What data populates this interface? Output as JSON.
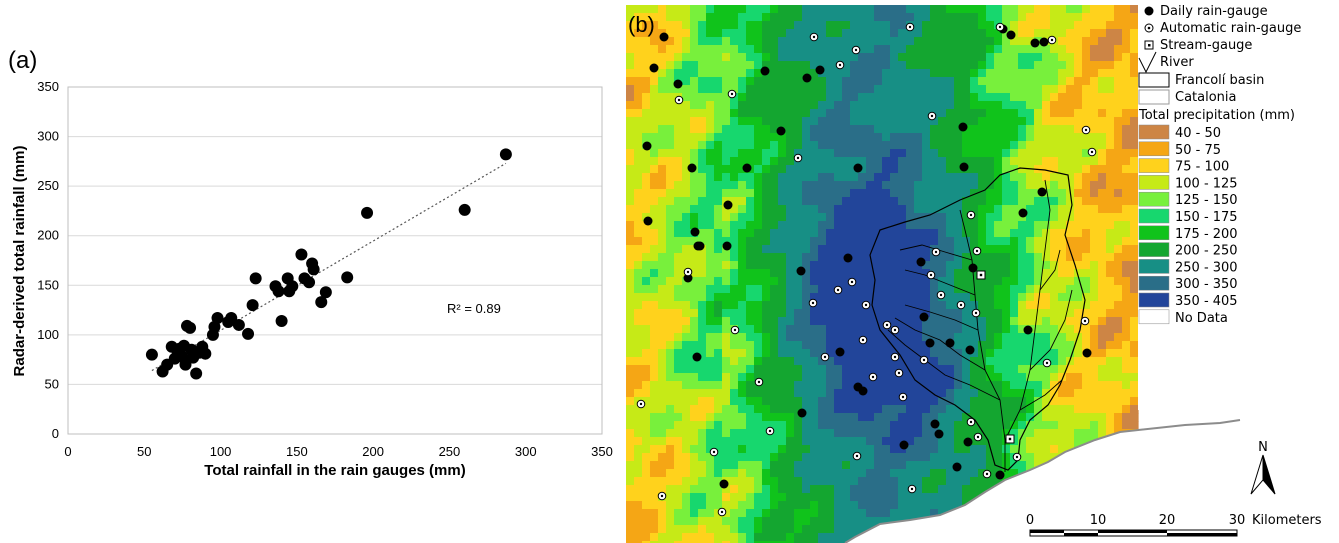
{
  "panel_a": {
    "label": "(a)",
    "r2_label": "R² = 0.89"
  },
  "panel_b": {
    "label": "(b)"
  },
  "chart_data": [
    {
      "type": "scatter",
      "title": "",
      "xlabel": "Total rainfall in the rain gauges (mm)",
      "ylabel": "Radar-derived total rainfall (mm)",
      "xlim": [
        0,
        350
      ],
      "ylim": [
        0,
        350
      ],
      "xticks": [
        "0",
        "50",
        "100",
        "150",
        "200",
        "250",
        "300",
        "350"
      ],
      "yticks": [
        "0",
        "50",
        "100",
        "150",
        "200",
        "250",
        "300",
        "350"
      ],
      "grid": "horizontal",
      "trendline": {
        "from": [
          55,
          64
        ],
        "to": [
          287,
          273
        ],
        "style": "dotted"
      },
      "annotation": "R² = 0.89",
      "points": [
        [
          55,
          80
        ],
        [
          62,
          63
        ],
        [
          65,
          70
        ],
        [
          68,
          88
        ],
        [
          70,
          76
        ],
        [
          72,
          82
        ],
        [
          73,
          86
        ],
        [
          75,
          78
        ],
        [
          76,
          89
        ],
        [
          77,
          70
        ],
        [
          78,
          109
        ],
        [
          80,
          107
        ],
        [
          81,
          85
        ],
        [
          82,
          77
        ],
        [
          84,
          61
        ],
        [
          86,
          82
        ],
        [
          88,
          88
        ],
        [
          90,
          81
        ],
        [
          95,
          100
        ],
        [
          96,
          108
        ],
        [
          98,
          117
        ],
        [
          105,
          113
        ],
        [
          107,
          117
        ],
        [
          112,
          110
        ],
        [
          118,
          101
        ],
        [
          121,
          130
        ],
        [
          123,
          157
        ],
        [
          136,
          149
        ],
        [
          138,
          144
        ],
        [
          140,
          114
        ],
        [
          144,
          157
        ],
        [
          145,
          144
        ],
        [
          147,
          149
        ],
        [
          153,
          181
        ],
        [
          155,
          157
        ],
        [
          158,
          153
        ],
        [
          160,
          172
        ],
        [
          161,
          166
        ],
        [
          166,
          133
        ],
        [
          169,
          143
        ],
        [
          183,
          158
        ],
        [
          196,
          223
        ],
        [
          260,
          226
        ],
        [
          287,
          282
        ]
      ]
    },
    {
      "type": "heatmap",
      "title": "Total precipitation (mm)",
      "legend_position": "right",
      "symbols": [
        {
          "name": "Daily rain-gauge",
          "icon": "filled-circle"
        },
        {
          "name": "Automatic rain-gauge",
          "icon": "dotted-circle"
        },
        {
          "name": "Stream-gauge",
          "icon": "dotted-square"
        },
        {
          "name": "River",
          "icon": "river-line"
        },
        {
          "name": "Francolí basin",
          "icon": "outline-box"
        },
        {
          "name": "Catalonia",
          "icon": "grey-outline-box"
        }
      ],
      "bins": [
        {
          "range": "40 - 50",
          "color": "#cd8545"
        },
        {
          "range": "50 - 75",
          "color": "#f5a615"
        },
        {
          "range": "75 - 100",
          "color": "#ffd21c"
        },
        {
          "range": "100 - 125",
          "color": "#c6ea17"
        },
        {
          "range": "125 - 150",
          "color": "#78f03c"
        },
        {
          "range": "150 - 175",
          "color": "#17d76e"
        },
        {
          "range": "175 - 200",
          "color": "#10c31b"
        },
        {
          "range": "200 - 250",
          "color": "#14a630"
        },
        {
          "range": "250 - 300",
          "color": "#178f85"
        },
        {
          "range": "300 - 350",
          "color": "#2a6e88"
        },
        {
          "range": "350 - 405",
          "color": "#22459a"
        },
        {
          "range": "No Data",
          "color": "#ffffff"
        }
      ],
      "north_label": "N",
      "scalebar": {
        "ticks": [
          "0",
          "10",
          "20",
          "30"
        ],
        "unit": "Kilometers"
      }
    }
  ]
}
